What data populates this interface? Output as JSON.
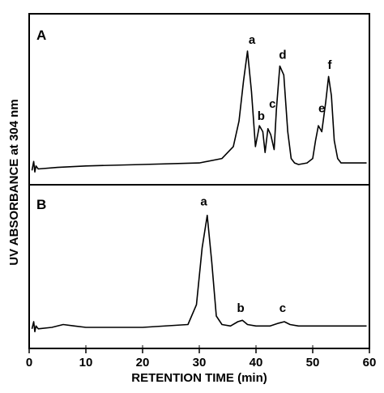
{
  "chart_data": {
    "type": "line",
    "xlabel": "RETENTION TIME (min)",
    "ylabel": "UV ABSORBANCE at 304 nm",
    "xlim": [
      0,
      60
    ],
    "x_ticks": [
      "0",
      "10",
      "20",
      "30",
      "40",
      "50",
      "60"
    ],
    "x_tick_values": [
      0,
      10,
      20,
      30,
      40,
      50,
      60
    ],
    "grid": false,
    "panels": [
      {
        "label": "A",
        "ylim": [
          0,
          1
        ],
        "series": [
          {
            "x": [
              0.5,
              0.8,
              1.0,
              1.2,
              1.6,
              5,
              10,
              20,
              30,
              34,
              36,
              37,
              37.8,
              38.5,
              39.2,
              39.9,
              40.6,
              41.2,
              41.6,
              42.1,
              42.6,
              43.2,
              43.6,
              44.2,
              44.9,
              45.6,
              46.2,
              46.8,
              47.5,
              49,
              50,
              50.5,
              51,
              51.6,
              52.3,
              52.8,
              53.3,
              53.8,
              54.4,
              55,
              56,
              58,
              59.5
            ],
            "y": [
              0.02,
              0.08,
              0.01,
              0.05,
              0.03,
              0.04,
              0.05,
              0.06,
              0.07,
              0.1,
              0.18,
              0.35,
              0.62,
              0.82,
              0.55,
              0.18,
              0.32,
              0.28,
              0.14,
              0.3,
              0.26,
              0.16,
              0.43,
              0.72,
              0.66,
              0.28,
              0.1,
              0.07,
              0.06,
              0.07,
              0.1,
              0.22,
              0.32,
              0.28,
              0.48,
              0.65,
              0.52,
              0.22,
              0.1,
              0.07,
              0.07,
              0.07,
              0.07
            ]
          }
        ],
        "annotations": [
          {
            "text": "a",
            "x": 39.3,
            "y": 0.87
          },
          {
            "text": "b",
            "x": 40.9,
            "y": 0.36
          },
          {
            "text": "c",
            "x": 42.9,
            "y": 0.44
          },
          {
            "text": "d",
            "x": 44.7,
            "y": 0.77
          },
          {
            "text": "e",
            "x": 51.6,
            "y": 0.41
          },
          {
            "text": "f",
            "x": 53.0,
            "y": 0.7
          }
        ]
      },
      {
        "label": "B",
        "ylim": [
          0,
          1
        ],
        "series": [
          {
            "x": [
              0.5,
              0.8,
              1.0,
              1.2,
              1.6,
              4,
              6,
              8,
              10,
              20,
              28,
              29.5,
              30.5,
              31.4,
              32.2,
              33.0,
              34.0,
              35.5,
              36.8,
              37.6,
              38.5,
              40,
              42.5,
              44,
              45,
              46,
              47.5,
              50,
              55,
              59.5
            ],
            "y": [
              0.03,
              0.08,
              0.01,
              0.05,
              0.03,
              0.04,
              0.06,
              0.05,
              0.04,
              0.04,
              0.06,
              0.2,
              0.6,
              0.83,
              0.5,
              0.12,
              0.06,
              0.05,
              0.08,
              0.09,
              0.06,
              0.05,
              0.05,
              0.07,
              0.08,
              0.06,
              0.05,
              0.05,
              0.05,
              0.05
            ]
          }
        ],
        "annotations": [
          {
            "text": "a",
            "x": 30.8,
            "y": 0.9
          },
          {
            "text": "b",
            "x": 37.3,
            "y": 0.15
          },
          {
            "text": "c",
            "x": 44.7,
            "y": 0.15
          }
        ]
      }
    ]
  }
}
